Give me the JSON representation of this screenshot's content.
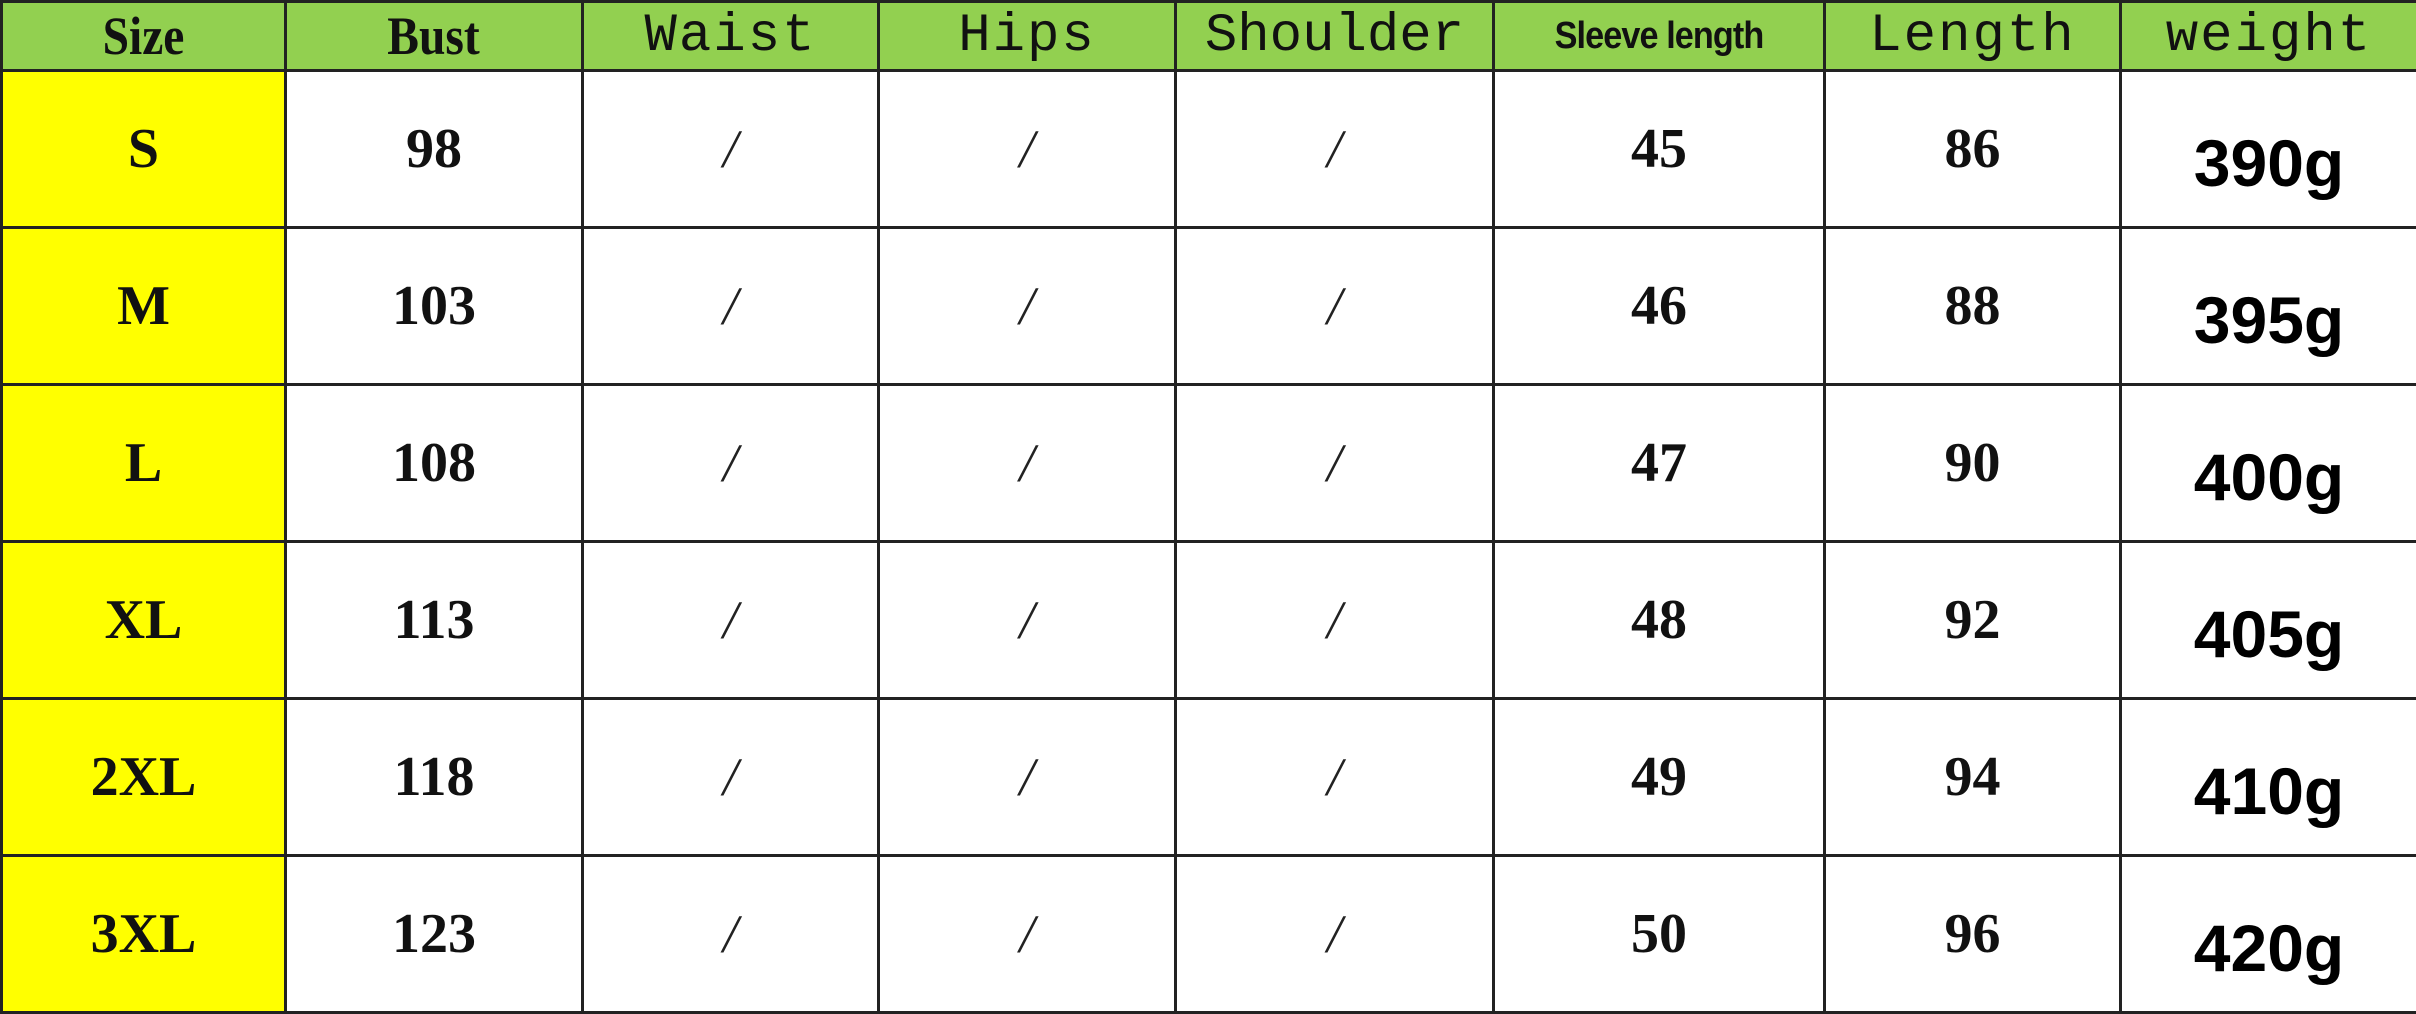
{
  "colors": {
    "header_bg": "#92d050",
    "size_col_bg": "#ffff00",
    "cell_bg": "#ffffff"
  },
  "headers": [
    "Size",
    "Bust",
    "Waist",
    "Hips",
    "Shoulder",
    "Sleeve length",
    "Length",
    "weight"
  ],
  "rows": [
    [
      "S",
      "98",
      "/",
      "/",
      "/",
      "45",
      "86",
      "390g"
    ],
    [
      "M",
      "103",
      "/",
      "/",
      "/",
      "46",
      "88",
      "395g"
    ],
    [
      "L",
      "108",
      "/",
      "/",
      "/",
      "47",
      "90",
      "400g"
    ],
    [
      "XL",
      "113",
      "/",
      "/",
      "/",
      "48",
      "92",
      "405g"
    ],
    [
      "2XL",
      "118",
      "/",
      "/",
      "/",
      "49",
      "94",
      "410g"
    ],
    [
      "3XL",
      "123",
      "/",
      "/",
      "/",
      "50",
      "96",
      "420g"
    ]
  ]
}
